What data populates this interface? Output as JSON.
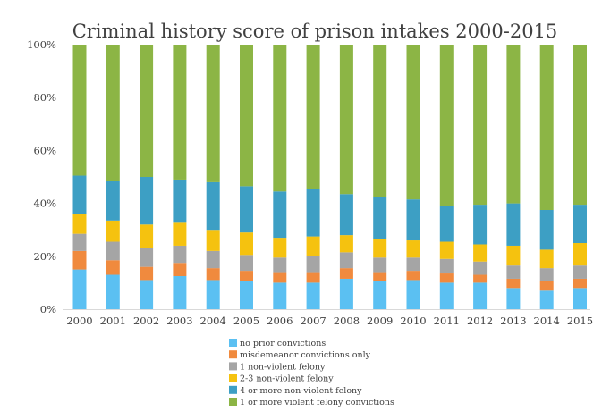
{
  "chart_data": {
    "type": "bar",
    "stacked": true,
    "percent_stacked": true,
    "title": "Criminal history score of prison intakes 2000-2015",
    "xlabel": "",
    "ylabel": "",
    "ylim": [
      0,
      100
    ],
    "y_ticks": [
      "0%",
      "20%",
      "40%",
      "60%",
      "80%",
      "100%"
    ],
    "grid": false,
    "legend_position": "bottom",
    "categories": [
      "2000",
      "2001",
      "2002",
      "2003",
      "2004",
      "2005",
      "2006",
      "2007",
      "2008",
      "2009",
      "2010",
      "2011",
      "2012",
      "2013",
      "2014",
      "2015"
    ],
    "series": [
      {
        "name": "no prior convictions",
        "color": "#5bc0f2",
        "values": [
          15,
          13,
          11,
          12.5,
          11,
          10.5,
          10,
          10,
          11.5,
          10.5,
          11,
          10,
          10,
          8,
          7,
          8
        ]
      },
      {
        "name": "misdemeanor convictions only",
        "color": "#f08a3e",
        "values": [
          7,
          5.5,
          5,
          5,
          4.5,
          4,
          4,
          4,
          4,
          3.5,
          3.5,
          3.5,
          3,
          3.5,
          3.5,
          3.5
        ]
      },
      {
        "name": "1 non-violent felony",
        "color": "#a5a5a5",
        "values": [
          6.5,
          7,
          7,
          6.5,
          6.5,
          6,
          5.5,
          6,
          6,
          5.5,
          5,
          5.5,
          5,
          5,
          5,
          5
        ]
      },
      {
        "name": "2-3 non-violent felony",
        "color": "#f5c20f",
        "values": [
          7.5,
          8,
          9,
          9,
          8,
          8.5,
          7.5,
          7.5,
          6.5,
          7,
          6.5,
          6.5,
          6.5,
          7.5,
          7,
          8.5
        ]
      },
      {
        "name": "4 or more non-violent felony",
        "color": "#3d9fc4",
        "values": [
          14.5,
          15,
          18,
          16,
          18,
          17.5,
          17.5,
          18,
          15.5,
          16,
          15.5,
          13.5,
          15,
          16,
          15,
          14.5
        ]
      },
      {
        "name": "1 or more violent felony convictions",
        "color": "#8cb545",
        "values": [
          49.5,
          51.5,
          50,
          51,
          52,
          53.5,
          55.5,
          54.5,
          56.5,
          57.5,
          58.5,
          61,
          60.5,
          60,
          62.5,
          60.5
        ]
      }
    ]
  }
}
